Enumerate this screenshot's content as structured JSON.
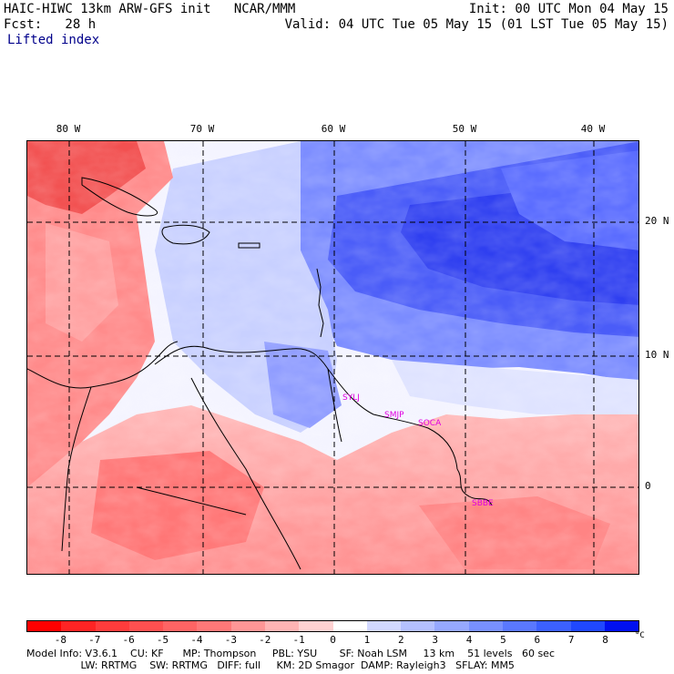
{
  "header": {
    "title_left": "HAIC-HIWC 13km ARW-GFS init   NCAR/MMM",
    "init_right": "Init: 00 UTC Mon 04 May 15",
    "fcst_left": "Fcst:   28 h",
    "valid_right": "Valid: 04 UTC Tue 05 May 15 (01 LST Tue 05 May 15)",
    "variable": "Lifted index"
  },
  "map": {
    "lon_labels": [
      "80 W",
      "70 W",
      "60 W",
      "50 W",
      "40 W"
    ],
    "lat_labels": [
      "20 N",
      "10 N",
      "0"
    ],
    "stations": [
      "SYLJ",
      "SMJP",
      "SOCA",
      "SBBE"
    ],
    "colors": {
      "border": "#000000",
      "grid": "#000000",
      "coast": "#000000"
    }
  },
  "colorbar": {
    "ticks": [
      "-8",
      "-7",
      "-6",
      "-5",
      "-4",
      "-3",
      "-2",
      "-1",
      "0",
      "1",
      "2",
      "3",
      "4",
      "5",
      "6",
      "7",
      "8"
    ],
    "unit": "°C",
    "colors": [
      "#ff0000",
      "#ff2424",
      "#ff3c3c",
      "#ff5050",
      "#ff6464",
      "#ff7878",
      "#ff9696",
      "#ffb4b4",
      "#ffd2d2",
      "#ffffff",
      "#d2d8ff",
      "#b4c0ff",
      "#96a8ff",
      "#7890ff",
      "#5a78ff",
      "#3c60ff",
      "#2048ff",
      "#0010f0"
    ]
  },
  "model_info": {
    "line1": "Model Info: V3.6.1    CU: KF      MP: Thompson     PBL: YSU       SF: Noah LSM     13 km    51 levels   60 sec",
    "line2": "                 LW: RRTMG    SW: RRTMG   DIFF: full     KM: 2D Smagor  DAMP: Rayleigh3   SFLAY: MM5"
  }
}
